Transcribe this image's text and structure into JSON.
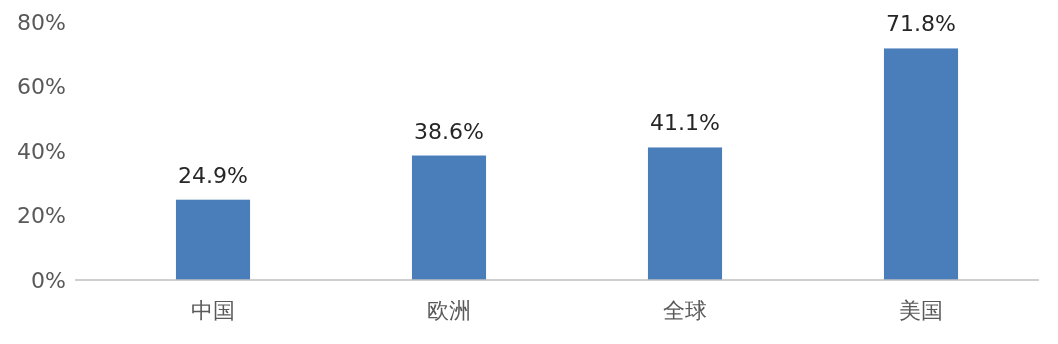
{
  "chart_data": {
    "type": "bar",
    "categories": [
      "中国",
      "欧洲",
      "全球",
      "美国"
    ],
    "values": [
      24.9,
      38.6,
      41.1,
      71.8
    ],
    "color": "#4a7ebb",
    "value_labels": [
      "24.9%",
      "38.6%",
      "41.1%",
      "71.8%"
    ],
    "ylim": [
      0,
      80
    ],
    "yticks": [
      {
        "value": 0,
        "label": "0%"
      },
      {
        "value": 20,
        "label": "20%"
      },
      {
        "value": 40,
        "label": "40%"
      },
      {
        "value": 60,
        "label": "60%"
      },
      {
        "value": 80,
        "label": "80%"
      }
    ],
    "grid": false
  }
}
